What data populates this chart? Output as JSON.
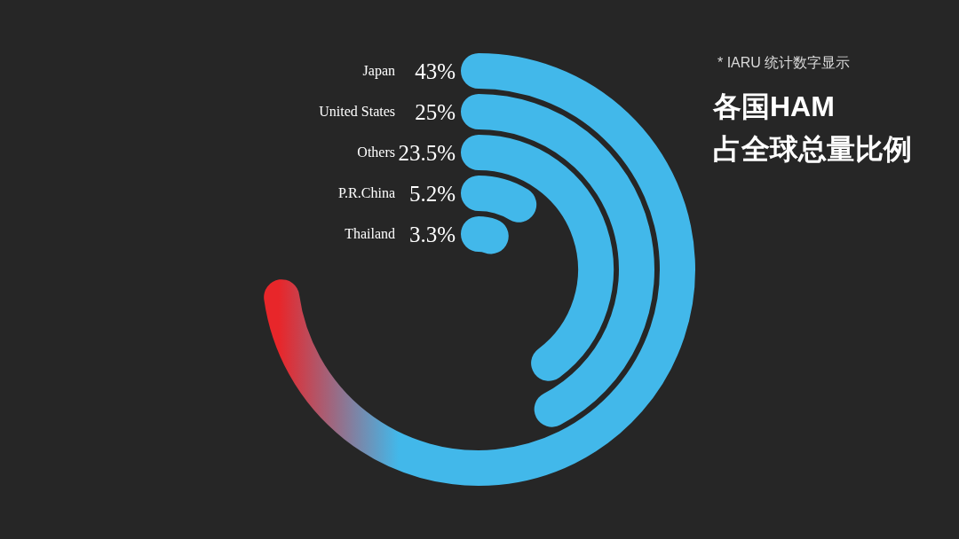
{
  "chart_data": {
    "type": "other",
    "title": "各国HAM\n占全球总量比例",
    "categories": [
      "Japan",
      "United States",
      "Others",
      "P.R.China",
      "Thailand"
    ],
    "values": [
      43,
      25,
      23.5,
      5.2,
      3.3
    ],
    "value_labels": [
      "43%",
      "25%",
      "23.5%",
      "5.2%",
      "3.3%"
    ],
    "colors": [
      "#42b8ea",
      "#42b8ea",
      "#42b8ea",
      "#42b8ea",
      "#42b8ea"
    ],
    "annotations": [
      "* IARU 统计数字显示"
    ]
  }
}
